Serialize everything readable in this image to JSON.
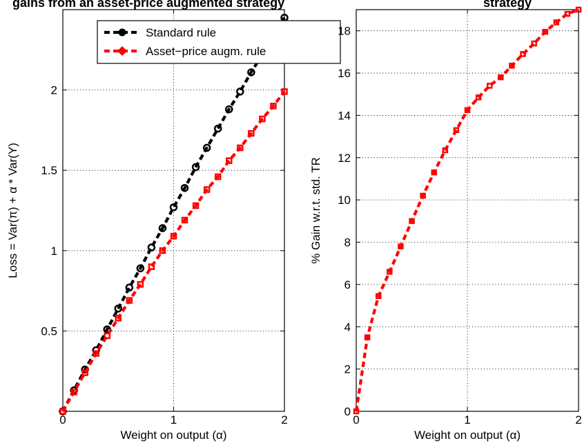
{
  "chart_data": [
    {
      "type": "line",
      "title": "gains from an asset-price augmented strategy",
      "xlabel": "Weight on output (α)",
      "ylabel": "Loss = Var(π) + α * Var(Y)",
      "xlim": [
        0,
        2
      ],
      "ylim": [
        0,
        2.5
      ],
      "xticks": [
        "0",
        "1",
        "2"
      ],
      "yticks": [
        "0.5",
        "1",
        "1.5",
        "2"
      ],
      "grid": true,
      "legend_position": "top",
      "x": [
        0,
        0.1,
        0.2,
        0.3,
        0.4,
        0.5,
        0.6,
        0.7,
        0.8,
        0.9,
        1.0,
        1.1,
        1.2,
        1.3,
        1.4,
        1.5,
        1.6,
        1.7,
        1.8,
        1.9,
        2.0
      ],
      "series": [
        {
          "name": "Standard rule",
          "color": "#000000",
          "marker": "circle",
          "values": [
            0.0,
            0.13,
            0.26,
            0.38,
            0.51,
            0.64,
            0.77,
            0.89,
            1.02,
            1.14,
            1.27,
            1.39,
            1.52,
            1.64,
            1.76,
            1.88,
            1.99,
            2.11,
            2.22,
            2.34,
            2.45
          ]
        },
        {
          "name": "Asset−price augm. rule",
          "color": "#ff0000",
          "marker": "diamond",
          "values": [
            0.0,
            0.12,
            0.24,
            0.36,
            0.47,
            0.58,
            0.69,
            0.79,
            0.9,
            1.0,
            1.09,
            1.19,
            1.28,
            1.38,
            1.46,
            1.56,
            1.64,
            1.73,
            1.82,
            1.9,
            1.99
          ]
        }
      ]
    },
    {
      "type": "line",
      "title": "strategy",
      "xlabel": "Weight on output (α)",
      "ylabel": "% Gain w.r.t. std. TR",
      "xlim": [
        0,
        2
      ],
      "ylim": [
        0,
        19
      ],
      "xticks": [
        "0",
        "1",
        "2"
      ],
      "yticks": [
        "0",
        "2",
        "4",
        "6",
        "8",
        "10",
        "12",
        "14",
        "16",
        "18"
      ],
      "grid": true,
      "x": [
        0,
        0.1,
        0.2,
        0.3,
        0.4,
        0.5,
        0.6,
        0.7,
        0.8,
        0.9,
        1.0,
        1.1,
        1.2,
        1.3,
        1.4,
        1.5,
        1.6,
        1.7,
        1.8,
        1.9,
        2.0
      ],
      "series": [
        {
          "name": "",
          "color": "#ff0000",
          "marker": "square",
          "values": [
            0.0,
            3.5,
            5.45,
            6.6,
            7.8,
            9.0,
            10.2,
            11.3,
            12.35,
            13.3,
            14.25,
            14.85,
            15.4,
            15.8,
            16.35,
            16.9,
            17.4,
            17.95,
            18.4,
            18.8,
            19.0
          ]
        }
      ]
    }
  ]
}
